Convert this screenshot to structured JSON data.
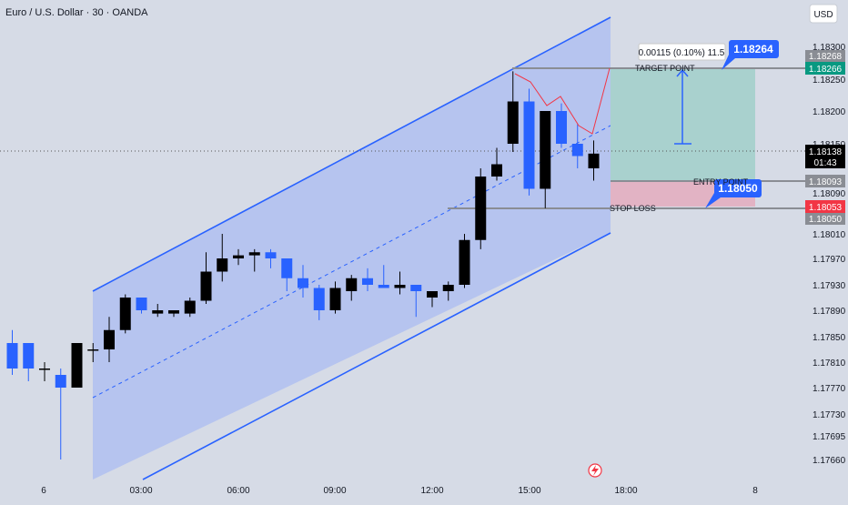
{
  "header": {
    "symbol_title": "Euro / U.S. Dollar · 30 · OANDA",
    "currency_button": "USD"
  },
  "colors": {
    "background": "#d6dbe6",
    "channel_fill": "#b6c4ef",
    "channel_line": "#2962ff",
    "bull_candle": "#000000",
    "bear_candle": "#2962ff",
    "target_zone": "#a9d1ce",
    "stop_zone": "#e2b3c4",
    "target_badge": "#089981",
    "stop_badge": "#f23645",
    "price_badge": "#000000",
    "level_badge": "#8a8d94",
    "projection_line": "#f23645",
    "callout": "#2962ff"
  },
  "annotations": {
    "target_label": "TARGET POINT",
    "entry_label": "ENTRY POINT",
    "stop_label": "STOP LOSS",
    "measure_text": "0.00115 (0.10%) 11.5",
    "target_callout": "1.18264",
    "entry_callout": "1.18050"
  },
  "price_badges": {
    "level_top": "1.18268",
    "target": "1.18266",
    "current_price": "1.18138",
    "countdown": "01:43",
    "entry": "1.18093",
    "stop": "1.18053",
    "level_bottom": "1.18050"
  },
  "icons": {
    "lightning": "lightning-icon"
  },
  "chart_data": {
    "type": "candlestick",
    "symbol": "EURUSD",
    "timeframe_minutes": 30,
    "y_ticks": [
      "1.18300",
      "1.18250",
      "1.18200",
      "1.18150",
      "1.18090",
      "1.18010",
      "1.17970",
      "1.17930",
      "1.17890",
      "1.17850",
      "1.17810",
      "1.17770",
      "1.17730",
      "1.17695",
      "1.17660"
    ],
    "x_ticks": [
      "6",
      "03:00",
      "06:00",
      "09:00",
      "12:00",
      "15:00",
      "18:00",
      "8"
    ],
    "candles": [
      {
        "time": "00:00",
        "open": 1.1784,
        "high": 1.1786,
        "low": 1.1779,
        "close": 1.178
      },
      {
        "time": "00:30",
        "open": 1.1784,
        "high": 1.1784,
        "low": 1.1778,
        "close": 1.178
      },
      {
        "time": "01:00",
        "open": 1.178,
        "high": 1.1781,
        "low": 1.1778,
        "close": 1.178
      },
      {
        "time": "01:30",
        "open": 1.1779,
        "high": 1.178,
        "low": 1.1766,
        "close": 1.1777
      },
      {
        "time": "02:00",
        "open": 1.1777,
        "high": 1.1784,
        "low": 1.1777,
        "close": 1.1784
      },
      {
        "time": "02:30",
        "open": 1.1783,
        "high": 1.1784,
        "low": 1.1781,
        "close": 1.1783
      },
      {
        "time": "03:00",
        "open": 1.1783,
        "high": 1.1788,
        "low": 1.1781,
        "close": 1.1786
      },
      {
        "time": "03:30",
        "open": 1.1786,
        "high": 1.17915,
        "low": 1.17855,
        "close": 1.1791
      },
      {
        "time": "04:00",
        "open": 1.1791,
        "high": 1.1791,
        "low": 1.17885,
        "close": 1.1789
      },
      {
        "time": "04:30",
        "open": 1.17885,
        "high": 1.179,
        "low": 1.1788,
        "close": 1.1789
      },
      {
        "time": "05:00",
        "open": 1.17885,
        "high": 1.1789,
        "low": 1.1788,
        "close": 1.1789
      },
      {
        "time": "05:30",
        "open": 1.17885,
        "high": 1.1791,
        "low": 1.1788,
        "close": 1.17905
      },
      {
        "time": "06:00",
        "open": 1.17905,
        "high": 1.1798,
        "low": 1.179,
        "close": 1.1795
      },
      {
        "time": "06:30",
        "open": 1.1795,
        "high": 1.1801,
        "low": 1.17935,
        "close": 1.1797
      },
      {
        "time": "07:00",
        "open": 1.1797,
        "high": 1.17985,
        "low": 1.1796,
        "close": 1.17975
      },
      {
        "time": "07:30",
        "open": 1.17975,
        "high": 1.17985,
        "low": 1.1795,
        "close": 1.1798
      },
      {
        "time": "08:00",
        "open": 1.1798,
        "high": 1.17985,
        "low": 1.17955,
        "close": 1.1797
      },
      {
        "time": "08:30",
        "open": 1.1797,
        "high": 1.1797,
        "low": 1.1792,
        "close": 1.1794
      },
      {
        "time": "09:00",
        "open": 1.1794,
        "high": 1.1796,
        "low": 1.1791,
        "close": 1.17925
      },
      {
        "time": "09:30",
        "open": 1.17925,
        "high": 1.1793,
        "low": 1.17875,
        "close": 1.1789
      },
      {
        "time": "10:00",
        "open": 1.1789,
        "high": 1.17935,
        "low": 1.17885,
        "close": 1.17925
      },
      {
        "time": "10:30",
        "open": 1.1792,
        "high": 1.17945,
        "low": 1.17905,
        "close": 1.1794
      },
      {
        "time": "11:00",
        "open": 1.1794,
        "high": 1.17955,
        "low": 1.1792,
        "close": 1.1793
      },
      {
        "time": "11:30",
        "open": 1.1793,
        "high": 1.1796,
        "low": 1.17925,
        "close": 1.17925
      },
      {
        "time": "12:00",
        "open": 1.17925,
        "high": 1.1795,
        "low": 1.17915,
        "close": 1.1793
      },
      {
        "time": "12:30",
        "open": 1.1793,
        "high": 1.1793,
        "low": 1.1788,
        "close": 1.1792
      },
      {
        "time": "13:00",
        "open": 1.1791,
        "high": 1.1792,
        "low": 1.17895,
        "close": 1.1792
      },
      {
        "time": "13:30",
        "open": 1.1792,
        "high": 1.17935,
        "low": 1.17905,
        "close": 1.1793
      },
      {
        "time": "14:00",
        "open": 1.1793,
        "high": 1.1801,
        "low": 1.17925,
        "close": 1.18
      },
      {
        "time": "14:30",
        "open": 1.18,
        "high": 1.1812,
        "low": 1.17985,
        "close": 1.1811
      },
      {
        "time": "15:00",
        "open": 1.1811,
        "high": 1.18145,
        "low": 1.18105,
        "close": 1.18125
      },
      {
        "time": "15:30",
        "open": 1.1815,
        "high": 1.18262,
        "low": 1.1814,
        "close": 1.18215
      },
      {
        "time": "16:00",
        "open": 1.18215,
        "high": 1.18235,
        "low": 1.18085,
        "close": 1.18095
      },
      {
        "time": "16:30",
        "open": 1.18095,
        "high": 1.182,
        "low": 1.1806,
        "close": 1.182
      },
      {
        "time": "17:00",
        "open": 1.182,
        "high": 1.18212,
        "low": 1.18145,
        "close": 1.1815
      },
      {
        "time": "17:30",
        "open": 1.1815,
        "high": 1.1818,
        "low": 1.1812,
        "close": 1.18135
      },
      {
        "time": "18:00",
        "open": 1.1812,
        "high": 1.18155,
        "low": 1.18105,
        "close": 1.18138
      }
    ],
    "levels": {
      "target": 1.18266,
      "entry": 1.18093,
      "stop": 1.18053,
      "current": 1.18138
    },
    "grid": false,
    "legend": "none"
  }
}
